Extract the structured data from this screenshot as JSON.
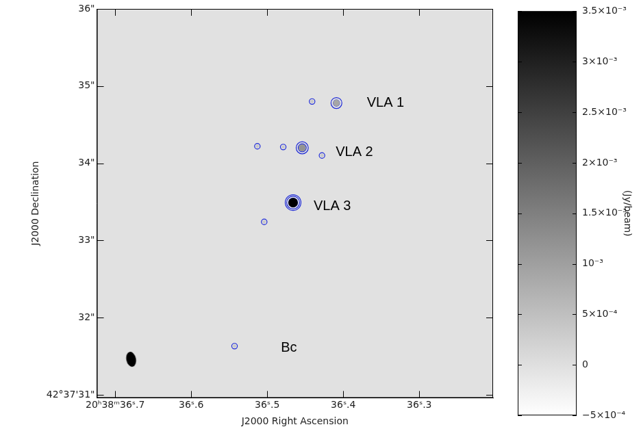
{
  "chart_data": {
    "type": "scatter",
    "x_label": "J2000 Right Ascension",
    "y_label": "J2000 Declination",
    "xlim": [
      36.724,
      36.203
    ],
    "xticks": [
      {
        "value": 36.7,
        "label": "20ʰ38ᵐ36ˢ.7"
      },
      {
        "value": 36.6,
        "label": "36ˢ.6"
      },
      {
        "value": 36.5,
        "label": "36ˢ.5"
      },
      {
        "value": 36.4,
        "label": "36ˢ.4"
      },
      {
        "value": 36.3,
        "label": "36ˢ.3"
      }
    ],
    "ylim": [
      30.96,
      36
    ],
    "yticks": [
      {
        "value": 31,
        "label": "42°37'31\""
      },
      {
        "value": 32,
        "label": "32\""
      },
      {
        "value": 33,
        "label": "33\""
      },
      {
        "value": 34,
        "label": "34\""
      },
      {
        "value": 35,
        "label": "35\""
      },
      {
        "value": 36,
        "label": "36\""
      }
    ],
    "grid": false,
    "contour_levels": [
      0.00025,
      0.0006,
      0.0015
    ],
    "color": "#1f2bd8",
    "sources": [
      {
        "x": 36.409,
        "y": 34.78,
        "flux": 0.0009
      },
      {
        "x": 36.441,
        "y": 34.8,
        "flux": 0.00035
      },
      {
        "x": 36.454,
        "y": 34.2,
        "flux": 0.0012
      },
      {
        "x": 36.479,
        "y": 34.21,
        "flux": 0.00035
      },
      {
        "x": 36.513,
        "y": 34.22,
        "flux": 0.00035
      },
      {
        "x": 36.428,
        "y": 34.1,
        "flux": 0.00035
      },
      {
        "x": 36.466,
        "y": 33.49,
        "flux": 0.0035
      },
      {
        "x": 36.504,
        "y": 33.24,
        "flux": 0.00035
      },
      {
        "x": 36.543,
        "y": 31.63,
        "flux": 0.00035
      }
    ],
    "beam": {
      "x": 36.679,
      "y": 31.46
    },
    "annotations": [
      {
        "text": "VLA 1",
        "x": 36.369,
        "y": 34.78
      },
      {
        "text": "VLA 2",
        "x": 36.41,
        "y": 34.14
      },
      {
        "text": "VLA 3",
        "x": 36.439,
        "y": 33.44
      },
      {
        "text": "Bc",
        "x": 36.482,
        "y": 31.61
      }
    ],
    "colorbar": {
      "label": "(Jy/beam)",
      "range": [
        -0.0005,
        0.0035
      ],
      "ticks": [
        {
          "value": 0.0035,
          "label": "3.5×10⁻³"
        },
        {
          "value": 0.003,
          "label": "3×10⁻³"
        },
        {
          "value": 0.0025,
          "label": "2.5×10⁻³"
        },
        {
          "value": 0.002,
          "label": "2×10⁻³"
        },
        {
          "value": 0.0015,
          "label": "1.5×10⁻³"
        },
        {
          "value": 0.001,
          "label": "10⁻³"
        },
        {
          "value": 0.0005,
          "label": "5×10⁻⁴"
        },
        0,
        {
          "value": -0.0005,
          "label": "−5×10⁻⁴"
        }
      ]
    }
  }
}
